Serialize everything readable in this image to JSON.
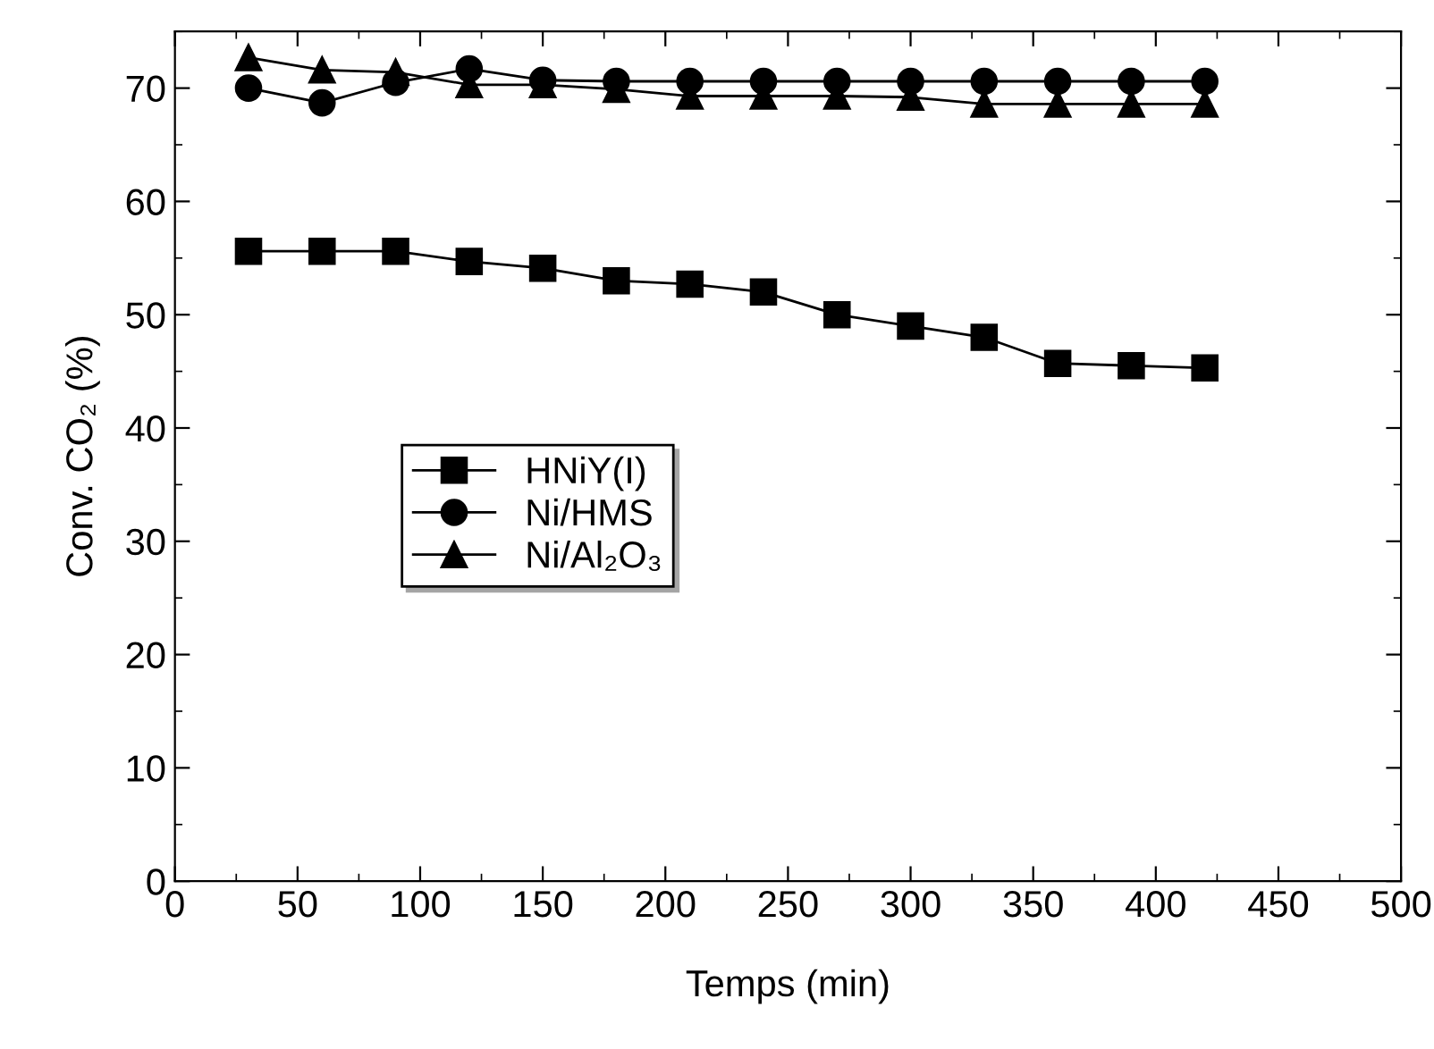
{
  "chart_data": {
    "type": "line",
    "xlabel": "Temps (min)",
    "ylabel": "Conv. CO₂ (%)",
    "x": [
      30,
      60,
      90,
      120,
      150,
      180,
      210,
      240,
      270,
      300,
      330,
      360,
      390,
      420
    ],
    "series": [
      {
        "name": "HNiY(I)",
        "color": "#000000",
        "marker": "square",
        "values": [
          55.6,
          55.6,
          55.6,
          54.7,
          54.1,
          53.0,
          52.7,
          52.0,
          50.0,
          49.0,
          48.0,
          45.7,
          45.5,
          45.3
        ]
      },
      {
        "name": "Ni/HMS",
        "color": "#000000",
        "marker": "circle",
        "values": [
          70.0,
          68.7,
          70.5,
          71.7,
          70.7,
          70.6,
          70.6,
          70.6,
          70.6,
          70.6,
          70.6,
          70.6,
          70.6,
          70.6
        ]
      },
      {
        "name": "Ni/Al₂O₃",
        "color": "#000000",
        "marker": "triangle",
        "values": [
          72.7,
          71.6,
          71.4,
          70.3,
          70.3,
          69.9,
          69.3,
          69.3,
          69.3,
          69.2,
          68.6,
          68.6,
          68.6,
          68.6
        ]
      }
    ],
    "xlim": [
      0,
      500
    ],
    "xticks": [
      0,
      50,
      100,
      150,
      200,
      250,
      300,
      350,
      400,
      450,
      500
    ],
    "ylim": [
      0,
      75
    ],
    "yticks": [
      0,
      10,
      20,
      30,
      40,
      50,
      60,
      70
    ],
    "grid": false,
    "legend": "center left",
    "line_style": "solid"
  }
}
